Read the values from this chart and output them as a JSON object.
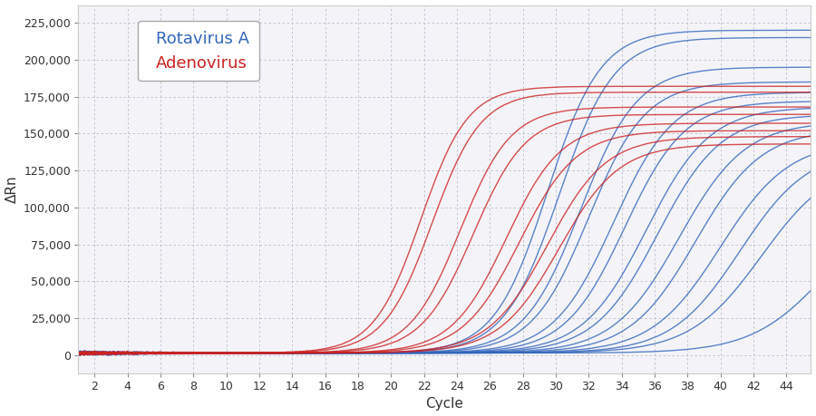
{
  "xlabel": "Cycle",
  "ylabel": "ΔRn",
  "xlim": [
    1,
    45.5
  ],
  "ylim": [
    -12000,
    237000
  ],
  "xticks": [
    2,
    4,
    6,
    8,
    10,
    12,
    14,
    16,
    18,
    20,
    22,
    24,
    26,
    28,
    30,
    32,
    34,
    36,
    38,
    40,
    42,
    44
  ],
  "yticks": [
    0,
    25000,
    50000,
    75000,
    100000,
    125000,
    150000,
    175000,
    200000,
    225000
  ],
  "background_color": "#ffffff",
  "plot_bg_color": "#f4f4f8",
  "blue_color": "#3366bb",
  "red_color": "#cc2222",
  "legend_labels": [
    "Rotavirus A",
    "Adenovirus"
  ],
  "blue_curves": [
    {
      "midpoint": 29.5,
      "plateau": 220000,
      "rate": 0.62
    },
    {
      "midpoint": 30.2,
      "plateau": 215000,
      "rate": 0.6
    },
    {
      "midpoint": 31.5,
      "plateau": 195000,
      "rate": 0.58
    },
    {
      "midpoint": 32.0,
      "plateau": 185000,
      "rate": 0.58
    },
    {
      "midpoint": 33.5,
      "plateau": 178000,
      "rate": 0.55
    },
    {
      "midpoint": 34.2,
      "plateau": 172000,
      "rate": 0.55
    },
    {
      "midpoint": 35.5,
      "plateau": 168000,
      "rate": 0.52
    },
    {
      "midpoint": 36.2,
      "plateau": 163000,
      "rate": 0.52
    },
    {
      "midpoint": 37.5,
      "plateau": 158000,
      "rate": 0.5
    },
    {
      "midpoint": 38.5,
      "plateau": 153000,
      "rate": 0.5
    },
    {
      "midpoint": 40.0,
      "plateau": 145000,
      "rate": 0.48
    },
    {
      "midpoint": 41.2,
      "plateau": 140000,
      "rate": 0.48
    },
    {
      "midpoint": 42.5,
      "plateau": 133000,
      "rate": 0.46
    },
    {
      "midpoint": 46.5,
      "plateau": 110000,
      "rate": 0.44
    }
  ],
  "red_curves": [
    {
      "midpoint": 21.8,
      "plateau": 182000,
      "rate": 0.7
    },
    {
      "midpoint": 22.5,
      "plateau": 178000,
      "rate": 0.68
    },
    {
      "midpoint": 24.2,
      "plateau": 168000,
      "rate": 0.65
    },
    {
      "midpoint": 25.0,
      "plateau": 163000,
      "rate": 0.63
    },
    {
      "midpoint": 27.0,
      "plateau": 157000,
      "rate": 0.6
    },
    {
      "midpoint": 27.8,
      "plateau": 152000,
      "rate": 0.58
    },
    {
      "midpoint": 29.5,
      "plateau": 148000,
      "rate": 0.56
    },
    {
      "midpoint": 30.2,
      "plateau": 143000,
      "rate": 0.55
    }
  ]
}
